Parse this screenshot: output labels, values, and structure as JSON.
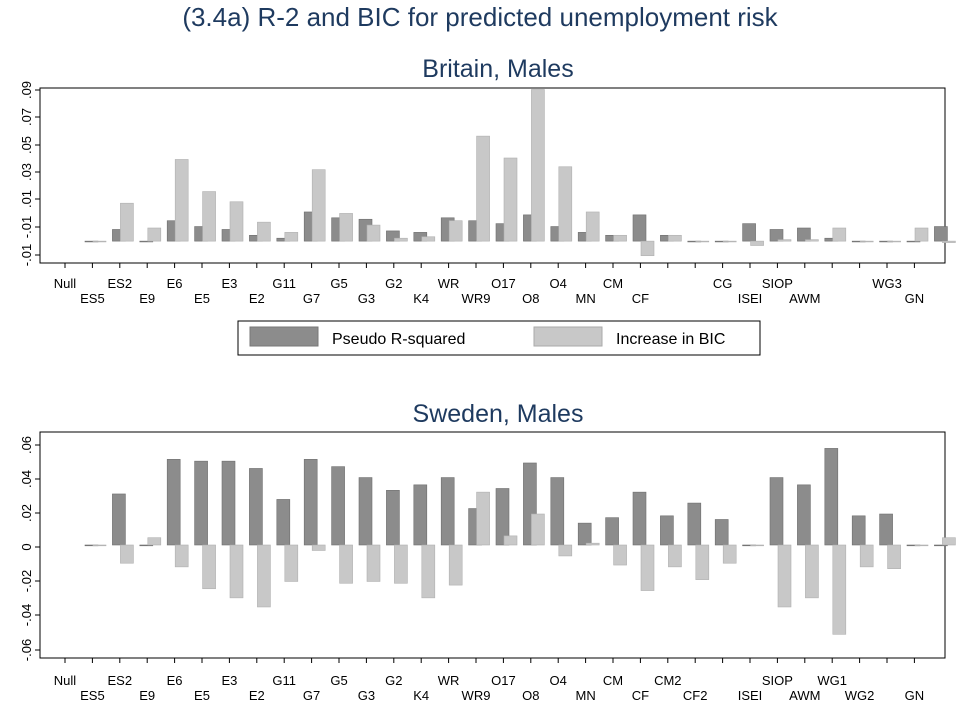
{
  "title": "(3.4a) R-2 and BIC for predicted unemployment risk",
  "legend": {
    "items": [
      {
        "label": "Pseudo R-squared",
        "color": "#8c8c8c"
      },
      {
        "label": "Increase in BIC",
        "color": "#c8c8c8"
      }
    ]
  },
  "chart_data": [
    {
      "type": "bar",
      "title": "Britain, Males",
      "yticks": [
        "-.01",
        "-.01",
        ".01",
        ".03",
        ".05",
        ".07",
        ".09"
      ],
      "ylim": [
        -0.015,
        0.105
      ],
      "categories": [
        "Null",
        "ES5",
        "ES2",
        "E9",
        "E6",
        "E5",
        "E3",
        "E2",
        "G11",
        "G7",
        "G5",
        "G3",
        "G2",
        "K4",
        "WR",
        "WR9",
        "O17",
        "O8",
        "O4",
        "MN",
        "CM",
        "CF",
        "",
        "",
        "CG",
        "ISEI",
        "SIOP",
        "AWM",
        "",
        "",
        "WG3",
        "GN"
      ],
      "series": [
        {
          "name": "Pseudo R-squared",
          "values": [
            0,
            0.008,
            0,
            0.014,
            0.01,
            0.008,
            0.004,
            0.002,
            0.02,
            0.016,
            0.015,
            0.007,
            0.006,
            0.016,
            0.014,
            0.012,
            0.018,
            0.01,
            0.006,
            0.004,
            0.018,
            0.004,
            0,
            0,
            0.012,
            0.008,
            0.009,
            0.002,
            0,
            0,
            0,
            0.01
          ]
        },
        {
          "name": "Increase in BIC",
          "values": [
            0,
            0.026,
            0.009,
            0.056,
            0.034,
            0.027,
            0.013,
            0.006,
            0.049,
            0.019,
            0.011,
            0.002,
            0.003,
            0.014,
            0.072,
            0.057,
            0.104,
            0.051,
            0.02,
            0.004,
            -0.01,
            0.004,
            0,
            0,
            -0.003,
            0.001,
            0.001,
            0.009,
            0,
            0,
            0.009,
            -0.001
          ]
        }
      ]
    },
    {
      "type": "bar",
      "title": "Sweden, Males",
      "yticks": [
        "-.06",
        "-.04",
        "-.02",
        "0",
        ".02",
        ".04",
        ".06"
      ],
      "ylim": [
        -0.062,
        0.062
      ],
      "categories": [
        "Null",
        "ES5",
        "ES2",
        "E9",
        "E6",
        "E5",
        "E3",
        "E2",
        "G11",
        "G7",
        "G5",
        "G3",
        "G2",
        "K4",
        "WR",
        "WR9",
        "O17",
        "O8",
        "O4",
        "MN",
        "CM",
        "CF",
        "CM2",
        "CF2",
        "",
        "ISEI",
        "SIOP",
        "AWM",
        "WG1",
        "WG2",
        "",
        "GN"
      ],
      "series": [
        {
          "name": "Pseudo R-squared",
          "values": [
            0,
            0.028,
            0,
            0.047,
            0.046,
            0.046,
            0.042,
            0.025,
            0.047,
            0.043,
            0.037,
            0.03,
            0.033,
            0.037,
            0.02,
            0.031,
            0.045,
            0.037,
            0.012,
            0.015,
            0.029,
            0.016,
            0.023,
            0.014,
            0,
            0.037,
            0.033,
            0.053,
            0.016,
            0.017,
            0,
            0
          ]
        },
        {
          "name": "Increase in BIC",
          "values": [
            0,
            -0.01,
            0.004,
            -0.012,
            -0.024,
            -0.029,
            -0.034,
            -0.02,
            -0.003,
            -0.021,
            -0.02,
            -0.021,
            -0.029,
            -0.022,
            0.029,
            0.005,
            0.017,
            -0.006,
            0.001,
            -0.011,
            -0.025,
            -0.012,
            -0.019,
            -0.01,
            0,
            -0.034,
            -0.029,
            -0.049,
            -0.012,
            -0.013,
            0,
            0.004
          ]
        }
      ]
    }
  ]
}
